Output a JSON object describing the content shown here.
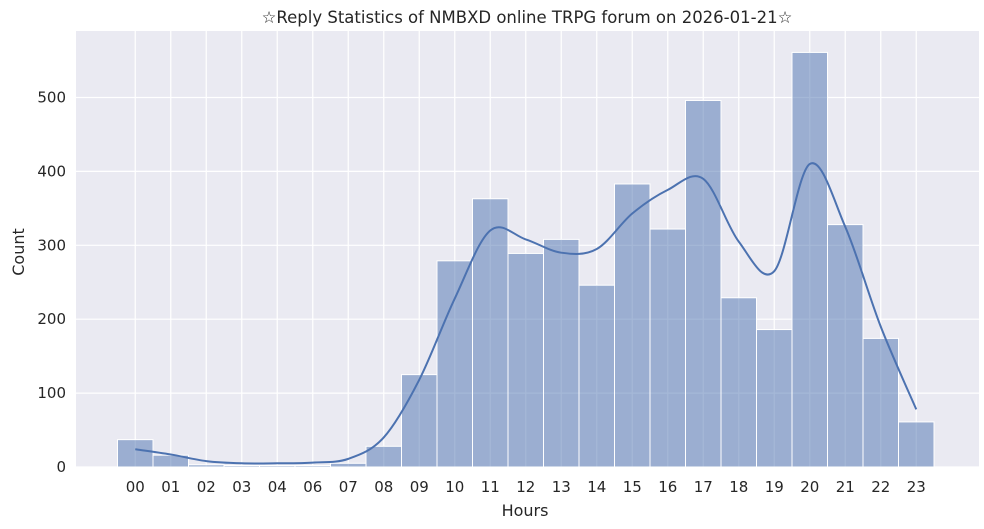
{
  "chart_data": {
    "type": "bar",
    "title": "☆Reply Statistics of NMBXD online TRPG forum on 2026-01-21☆",
    "xlabel": "Hours",
    "ylabel": "Count",
    "categories": [
      "00",
      "01",
      "02",
      "03",
      "04",
      "06",
      "07",
      "08",
      "09",
      "10",
      "11",
      "12",
      "13",
      "14",
      "15",
      "16",
      "17",
      "18",
      "19",
      "20",
      "21",
      "22",
      "23"
    ],
    "values": [
      37,
      16,
      3,
      2,
      2,
      2,
      5,
      28,
      125,
      279,
      363,
      289,
      308,
      246,
      383,
      322,
      496,
      229,
      186,
      561,
      328,
      174,
      61
    ],
    "kde": [
      24,
      17,
      8,
      5,
      5,
      6,
      11,
      40,
      118,
      228,
      320,
      308,
      290,
      295,
      343,
      375,
      390,
      305,
      265,
      410,
      325,
      190,
      78
    ],
    "ylim": [
      0,
      590
    ],
    "yticks": [
      0,
      100,
      200,
      300,
      400,
      500
    ],
    "grid": true,
    "colors": {
      "bar_fill": "#4c72b0",
      "line": "#4c72b0",
      "plot_bg": "#eaeaf2",
      "grid": "#ffffff"
    }
  }
}
